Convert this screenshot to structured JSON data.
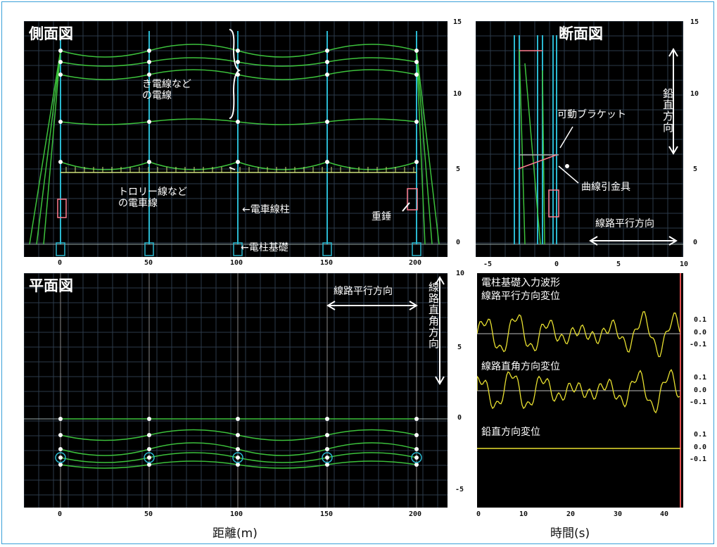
{
  "panels": {
    "side_view": {
      "title": "側面図",
      "annotations": {
        "feeder": "き電線など\nの電線",
        "trolley": "トロリー線など\nの電車線",
        "pole": "←電車線柱",
        "foundation": "←電柱基礎",
        "weight": "重錘"
      },
      "y_ticks": [
        "15",
        "10",
        "5",
        "0"
      ]
    },
    "cross_section": {
      "title": "断面図",
      "annotations": {
        "bracket": "可動ブラケット",
        "pull_off": "曲線引金具",
        "vertical_dir": "鉛直方向",
        "parallel_dir": "線路平行方向"
      },
      "x_ticks": [
        "-5",
        "0",
        "5",
        "10"
      ],
      "y_ticks": [
        "15",
        "10",
        "5",
        "0"
      ]
    },
    "plan_view": {
      "title": "平面図",
      "annotations": {
        "parallel_dir": "線路平行方向",
        "perpendicular_dir": "線路直角方向"
      },
      "x_ticks": [
        "0",
        "50",
        "100",
        "150",
        "200"
      ],
      "y_ticks": [
        "10",
        "5",
        "0",
        "-5"
      ]
    },
    "waveform": {
      "header": "電柱基礎入力波形",
      "labels": [
        "線路平行方向変位",
        "線路直角方向変位",
        "鉛直方向変位"
      ],
      "ticks": [
        "0.1",
        "0.0",
        "-0.1"
      ],
      "x_ticks": [
        "0",
        "10",
        "20",
        "30",
        "40"
      ]
    }
  },
  "axis_labels": {
    "distance": "距離(m)",
    "time": "時間(s)"
  },
  "colors": {
    "panel_bg": "#000000",
    "grid": "#2c3a4a",
    "wire": "#3cc13c",
    "pole": "#2ab8d0",
    "waveform": "#e8e030",
    "frame": "#3aa0d8"
  }
}
